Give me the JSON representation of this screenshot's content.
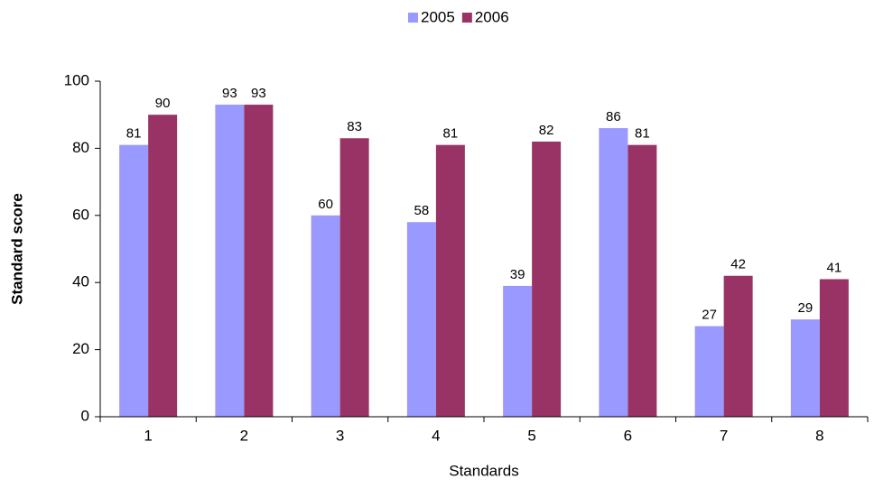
{
  "chart_data": {
    "type": "bar",
    "categories": [
      "1",
      "2",
      "3",
      "4",
      "5",
      "6",
      "7",
      "8"
    ],
    "series": [
      {
        "name": "2005",
        "color": "#9999ff",
        "values": [
          81,
          93,
          60,
          58,
          39,
          86,
          27,
          29
        ]
      },
      {
        "name": "2006",
        "color": "#993366",
        "values": [
          90,
          93,
          83,
          81,
          82,
          81,
          42,
          41
        ]
      }
    ],
    "ylim": [
      0,
      100
    ],
    "yticks": [
      0,
      20,
      40,
      60,
      80,
      100
    ],
    "y_label": "Standard score",
    "x_label": "Standards",
    "legend": "top"
  }
}
